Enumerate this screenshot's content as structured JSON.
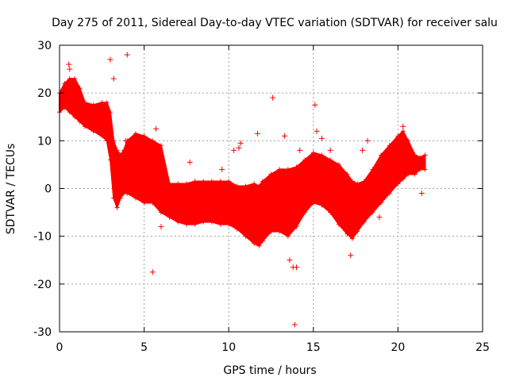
{
  "chart_data": {
    "type": "scatter",
    "title": "Day 275 of 2011, Sidereal Day-to-day VTEC variation (SDTVAR) for receiver salu",
    "xlabel": "GPS time / hours",
    "ylabel": "SDTVAR / TECUs",
    "xlim": [
      0,
      25
    ],
    "ylim": [
      -30,
      30
    ],
    "xticks": [
      0,
      5,
      10,
      15,
      20,
      25
    ],
    "yticks": [
      -30,
      -20,
      -10,
      0,
      10,
      20,
      30
    ],
    "grid": true,
    "marker": "+",
    "color": "#ff0000",
    "band": {
      "description": "dense envelope of points (upper/lower bounds vs time)",
      "x": [
        0.0,
        0.3,
        0.6,
        0.9,
        1.2,
        1.5,
        2.0,
        2.5,
        2.8,
        3.0,
        3.2,
        3.4,
        3.6,
        3.8,
        4.0,
        4.5,
        5.0,
        5.5,
        6.0,
        6.5,
        7.0,
        7.5,
        8.0,
        8.5,
        9.0,
        9.5,
        10.0,
        10.5,
        11.0,
        11.5,
        11.8,
        12.0,
        12.5,
        13.0,
        13.5,
        14.0,
        14.5,
        15.0,
        15.5,
        16.0,
        16.5,
        17.0,
        17.3,
        17.6,
        18.0,
        18.5,
        19.0,
        19.5,
        20.0,
        20.3,
        20.6,
        21.0,
        21.3,
        21.6
      ],
      "upper": [
        20,
        22,
        23,
        23,
        21,
        18,
        17.5,
        18,
        18,
        16,
        10,
        8,
        7,
        8,
        10,
        11.5,
        11,
        10,
        9,
        1,
        1,
        1,
        1.5,
        1.5,
        1.5,
        1.5,
        1.5,
        0.5,
        0.5,
        1,
        0.5,
        1.5,
        3,
        4,
        4,
        4.5,
        6,
        7.5,
        7,
        6,
        5,
        3,
        1.5,
        1,
        1.5,
        4,
        7,
        9,
        11,
        12,
        10,
        7,
        6.5,
        7
      ],
      "lower": [
        16,
        17,
        16,
        15,
        14,
        13,
        12,
        11,
        10,
        6,
        -2,
        -4,
        -2,
        -1,
        -1,
        -2,
        -3,
        -3,
        -5,
        -6,
        -7,
        -7.5,
        -7.5,
        -7,
        -7,
        -7.5,
        -7.5,
        -8.5,
        -10,
        -11.5,
        -12,
        -11,
        -9,
        -9,
        -10,
        -8,
        -5,
        -3,
        -3.5,
        -5,
        -7.5,
        -9.5,
        -10.5,
        -9,
        -7,
        -5,
        -3,
        -1,
        1,
        2,
        3,
        3,
        4,
        4
      ]
    },
    "outliers": [
      {
        "x": 0.55,
        "y": 26
      },
      {
        "x": 0.6,
        "y": 25
      },
      {
        "x": 3.0,
        "y": 27
      },
      {
        "x": 3.2,
        "y": 23
      },
      {
        "x": 4.0,
        "y": 28
      },
      {
        "x": 3.9,
        "y": 10
      },
      {
        "x": 5.7,
        "y": 12.5
      },
      {
        "x": 5.5,
        "y": -17.5
      },
      {
        "x": 6.0,
        "y": -8
      },
      {
        "x": 7.7,
        "y": 5.5
      },
      {
        "x": 9.6,
        "y": 4
      },
      {
        "x": 10.3,
        "y": 8
      },
      {
        "x": 10.6,
        "y": 8.5
      },
      {
        "x": 10.7,
        "y": 9.5
      },
      {
        "x": 11.7,
        "y": 11.5
      },
      {
        "x": 12.6,
        "y": 19
      },
      {
        "x": 13.3,
        "y": 11
      },
      {
        "x": 13.6,
        "y": -15
      },
      {
        "x": 13.8,
        "y": -16.5
      },
      {
        "x": 13.9,
        "y": -28.5
      },
      {
        "x": 14.0,
        "y": -16.5
      },
      {
        "x": 14.2,
        "y": 8
      },
      {
        "x": 15.1,
        "y": 17.5
      },
      {
        "x": 15.2,
        "y": 12
      },
      {
        "x": 15.5,
        "y": 10.5
      },
      {
        "x": 16.0,
        "y": 8
      },
      {
        "x": 17.2,
        "y": -14
      },
      {
        "x": 17.9,
        "y": 8
      },
      {
        "x": 18.2,
        "y": 10
      },
      {
        "x": 18.9,
        "y": -6
      },
      {
        "x": 20.3,
        "y": 13
      },
      {
        "x": 21.4,
        "y": -1
      }
    ]
  }
}
